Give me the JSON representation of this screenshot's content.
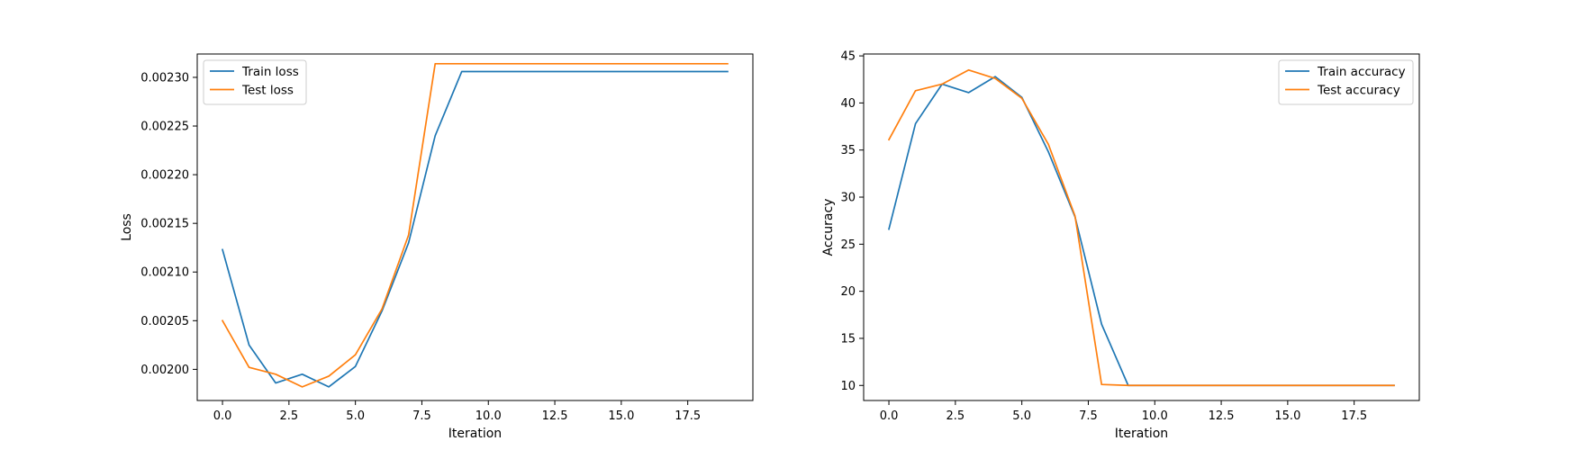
{
  "chart_data": [
    {
      "type": "line",
      "title": "",
      "xlabel": "Iteration",
      "ylabel": "Loss",
      "xlim": [
        -0.95,
        19.95
      ],
      "ylim": [
        0.001968,
        0.002324
      ],
      "xticks": [
        0.0,
        2.5,
        5.0,
        7.5,
        10.0,
        12.5,
        15.0,
        17.5
      ],
      "xtick_labels": [
        "0.0",
        "2.5",
        "5.0",
        "7.5",
        "10.0",
        "12.5",
        "15.0",
        "17.5"
      ],
      "yticks": [
        0.002,
        0.00205,
        0.0021,
        0.00215,
        0.0022,
        0.00225,
        0.0023
      ],
      "ytick_labels": [
        "0.00200",
        "0.00205",
        "0.00210",
        "0.00215",
        "0.00220",
        "0.00225",
        "0.00230"
      ],
      "legend_position": "upper-left",
      "grid": false,
      "x": [
        0,
        1,
        2,
        3,
        4,
        5,
        6,
        7,
        8,
        9,
        10,
        11,
        12,
        13,
        14,
        15,
        16,
        17,
        18,
        19
      ],
      "series": [
        {
          "name": "Train loss",
          "color": "#1f77b4",
          "values": [
            0.002123,
            0.002025,
            0.001986,
            0.001995,
            0.001982,
            0.002003,
            0.00206,
            0.00213,
            0.00224,
            0.002306,
            0.002306,
            0.002306,
            0.002306,
            0.002306,
            0.002306,
            0.002306,
            0.002306,
            0.002306,
            0.002306,
            0.002306
          ]
        },
        {
          "name": "Test loss",
          "color": "#ff7f0e",
          "values": [
            0.00205,
            0.002002,
            0.001995,
            0.001982,
            0.001993,
            0.002015,
            0.002062,
            0.002138,
            0.002314,
            0.002314,
            0.002314,
            0.002314,
            0.002314,
            0.002314,
            0.002314,
            0.002314,
            0.002314,
            0.002314,
            0.002314,
            0.002314
          ]
        }
      ]
    },
    {
      "type": "line",
      "title": "",
      "xlabel": "Iteration",
      "ylabel": "Accuracy",
      "xlim": [
        -0.95,
        19.95
      ],
      "ylim": [
        8.4,
        45.2
      ],
      "xticks": [
        0.0,
        2.5,
        5.0,
        7.5,
        10.0,
        12.5,
        15.0,
        17.5
      ],
      "xtick_labels": [
        "0.0",
        "2.5",
        "5.0",
        "7.5",
        "10.0",
        "12.5",
        "15.0",
        "17.5"
      ],
      "yticks": [
        10,
        15,
        20,
        25,
        30,
        35,
        40,
        45
      ],
      "ytick_labels": [
        "10",
        "15",
        "20",
        "25",
        "30",
        "35",
        "40",
        "45"
      ],
      "legend_position": "upper-right",
      "grid": false,
      "x": [
        0,
        1,
        2,
        3,
        4,
        5,
        6,
        7,
        8,
        9,
        10,
        11,
        12,
        13,
        14,
        15,
        16,
        17,
        18,
        19
      ],
      "series": [
        {
          "name": "Train accuracy",
          "color": "#1f77b4",
          "values": [
            26.6,
            37.8,
            42.0,
            41.1,
            42.8,
            40.6,
            34.8,
            27.9,
            16.5,
            10.0,
            10.0,
            10.0,
            10.0,
            10.0,
            10.0,
            10.0,
            10.0,
            10.0,
            10.0,
            10.0
          ]
        },
        {
          "name": "Test accuracy",
          "color": "#ff7f0e",
          "values": [
            36.1,
            41.3,
            42.0,
            43.5,
            42.6,
            40.5,
            35.6,
            28.0,
            10.1,
            10.0,
            10.0,
            10.0,
            10.0,
            10.0,
            10.0,
            10.0,
            10.0,
            10.0,
            10.0,
            10.0
          ]
        }
      ]
    }
  ]
}
